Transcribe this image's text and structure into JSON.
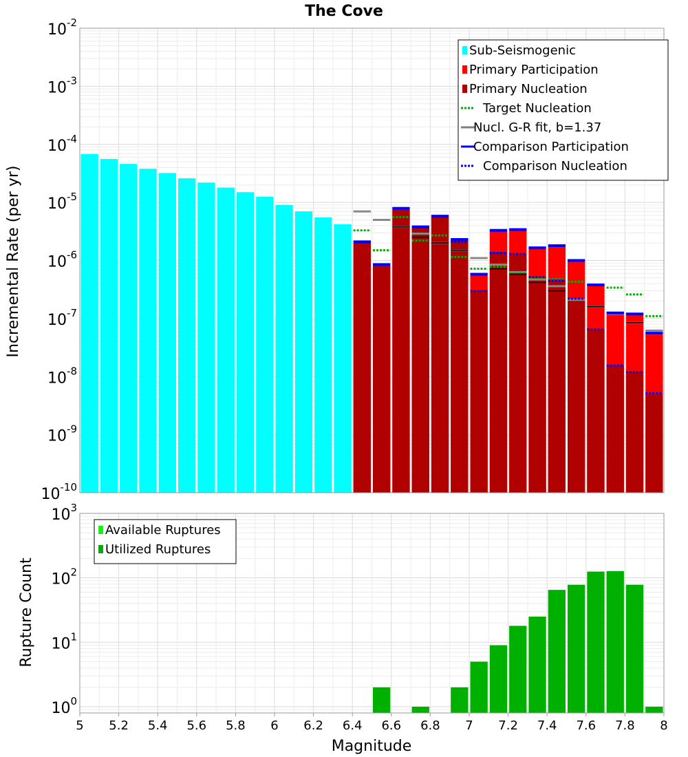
{
  "chart_data": [
    {
      "type": "bar",
      "title": "The Cove",
      "xlabel": "",
      "ylabel": "Incremental Rate (per yr)",
      "yscale": "log",
      "ylim": [
        1e-10,
        0.01
      ],
      "xlim": [
        5,
        8
      ],
      "yticks": [
        {
          "base": "10",
          "exp": "-2"
        },
        {
          "base": "10",
          "exp": "-3"
        },
        {
          "base": "10",
          "exp": "-4"
        },
        {
          "base": "10",
          "exp": "-5"
        },
        {
          "base": "10",
          "exp": "-6"
        },
        {
          "base": "10",
          "exp": "-7"
        },
        {
          "base": "10",
          "exp": "-8"
        },
        {
          "base": "10",
          "exp": "-9"
        },
        {
          "base": "10",
          "exp": "-10"
        }
      ],
      "legend_position": "top-right",
      "legend": [
        {
          "label": "Sub-Seismogenic",
          "color": "#00ffff",
          "style": "bar"
        },
        {
          "label": "Primary Participation",
          "color": "#ff0000",
          "style": "bar"
        },
        {
          "label": "Primary Nucleation",
          "color": "#b00000",
          "style": "bar"
        },
        {
          "label": "Target Nucleation",
          "color": "#00b000",
          "style": "dotted"
        },
        {
          "label": "Nucl. G-R fit, b=1.37",
          "color": "#808080",
          "style": "solid"
        },
        {
          "label": "Comparison Participation",
          "color": "#0000ff",
          "style": "solid"
        },
        {
          "label": "Comparison Nucleation",
          "color": "#0000ff",
          "style": "dotted"
        }
      ],
      "series": [
        {
          "name": "Sub-Seismogenic",
          "x": [
            5.05,
            5.15,
            5.25,
            5.35,
            5.45,
            5.55,
            5.65,
            5.75,
            5.85,
            5.95,
            6.05,
            6.15,
            6.25,
            6.35,
            6.55
          ],
          "values": [
            6.8e-05,
            5.6e-05,
            4.6e-05,
            3.8e-05,
            3.2e-05,
            2.6e-05,
            2.2e-05,
            1.8e-05,
            1.5e-05,
            1.25e-05,
            9e-06,
            7e-06,
            5.5e-06,
            4.2e-06,
            9e-07
          ]
        },
        {
          "name": "Primary Participation",
          "x": [
            6.45,
            6.55,
            6.65,
            6.75,
            6.85,
            6.95,
            7.05,
            7.15,
            7.25,
            7.35,
            7.45,
            7.55,
            7.65,
            7.75,
            7.85,
            7.95
          ],
          "values": [
            2e-06,
            8e-07,
            7.5e-06,
            3.7e-06,
            5.6e-06,
            2.2e-06,
            5.5e-07,
            3.2e-06,
            3.3e-06,
            1.6e-06,
            1.7e-06,
            9.5e-07,
            3.6e-07,
            1.2e-07,
            1.15e-07,
            5.3e-08
          ]
        },
        {
          "name": "Primary Nucleation",
          "x": [
            6.45,
            6.55,
            6.65,
            6.75,
            6.85,
            6.95,
            7.05,
            7.15,
            7.25,
            7.35,
            7.45,
            7.55,
            7.65,
            7.75,
            7.85,
            7.95
          ],
          "values": [
            2e-06,
            8e-07,
            7.5e-06,
            3.7e-06,
            5.6e-06,
            2.2e-06,
            3e-07,
            1.4e-06,
            1.3e-06,
            5e-07,
            4.5e-07,
            2.2e-07,
            6.5e-08,
            1.55e-08,
            1.2e-08,
            5e-09
          ]
        },
        {
          "name": "Target Nucleation",
          "x": [
            6.45,
            6.55,
            6.65,
            6.75,
            6.85,
            6.95,
            7.05,
            7.15,
            7.25,
            7.35,
            7.45,
            7.55,
            7.65,
            7.75,
            7.85,
            7.95
          ],
          "values": [
            3.3e-06,
            1.5e-06,
            5.6e-06,
            2.2e-06,
            2.7e-06,
            1.15e-06,
            7.2e-07,
            7.8e-07,
            6e-07,
            5e-07,
            4.8e-07,
            4.3e-07,
            3.8e-07,
            3.4e-07,
            2.6e-07,
            1.1e-07
          ]
        },
        {
          "name": "Nucl. G-R fit, b=1.37",
          "x": [
            6.45,
            6.55,
            6.65,
            6.75,
            6.85,
            6.95,
            7.05,
            7.15,
            7.25,
            7.35,
            7.45,
            7.55,
            7.65,
            7.75,
            7.85,
            7.95
          ],
          "values": [
            7e-06,
            5e-06,
            3.8e-06,
            2.9e-06,
            2e-06,
            1.5e-06,
            1.1e-06,
            8.5e-07,
            6.3e-07,
            4.7e-07,
            3.6e-07,
            2.1e-07,
            1.6e-07,
            1.2e-07,
            8.5e-08,
            6.2e-08
          ]
        },
        {
          "name": "Primary Nucleation marker",
          "x": [
            6.65,
            6.75,
            6.85,
            6.95,
            7.15,
            7.25,
            7.35,
            7.45,
            7.65,
            7.85
          ],
          "values": [
            3.8e-06,
            2.5e-06,
            2e-06,
            1.5e-06,
            7.2e-07,
            5.8e-07,
            4.2e-07,
            3e-07,
            1.6e-07,
            8.5e-08
          ]
        },
        {
          "name": "Comparison Participation",
          "x": [
            6.45,
            6.55,
            6.65,
            6.75,
            6.85,
            6.95,
            7.05,
            7.15,
            7.25,
            7.35,
            7.45,
            7.55,
            7.65,
            7.75,
            7.85,
            7.95
          ],
          "values": [
            2.1e-06,
            8.5e-07,
            7.9e-06,
            3.8e-06,
            5.8e-06,
            2.3e-06,
            5.8e-07,
            3.3e-06,
            3.4e-06,
            1.65e-06,
            1.8e-06,
            1e-06,
            3.8e-07,
            1.25e-07,
            1.2e-07,
            5.6e-08
          ]
        },
        {
          "name": "Comparison Nucleation",
          "x": [
            6.95,
            7.05,
            7.15,
            7.25,
            7.35,
            7.45,
            7.55,
            7.65,
            7.75,
            7.85,
            7.95
          ],
          "values": [
            2.1e-06,
            3e-07,
            1.35e-06,
            1.3e-06,
            5.2e-07,
            4.5e-07,
            2.2e-07,
            6.5e-08,
            1.55e-08,
            1.2e-08,
            5.2e-09
          ]
        }
      ]
    },
    {
      "type": "bar",
      "title": "",
      "xlabel": "Magnitude",
      "ylabel": "Rupture Count",
      "yscale": "log",
      "ylim": [
        0.8,
        1000
      ],
      "xlim": [
        5,
        8
      ],
      "xticks": [
        "5",
        "5.2",
        "5.4",
        "5.6",
        "5.8",
        "6",
        "6.2",
        "6.4",
        "6.6",
        "6.8",
        "7",
        "7.2",
        "7.4",
        "7.6",
        "7.8",
        "8"
      ],
      "yticks": [
        {
          "base": "10",
          "exp": "3"
        },
        {
          "base": "10",
          "exp": "2"
        },
        {
          "base": "10",
          "exp": "1"
        },
        {
          "base": "10",
          "exp": "0"
        }
      ],
      "legend_position": "top-left",
      "legend": [
        {
          "label": "Available Ruptures",
          "color": "#00ff00",
          "style": "bar"
        },
        {
          "label": "Utilized Ruptures",
          "color": "#00b000",
          "style": "bar"
        }
      ],
      "series": [
        {
          "name": "Utilized Ruptures",
          "x": [
            6.55,
            6.75,
            6.95,
            7.05,
            7.15,
            7.25,
            7.35,
            7.45,
            7.55,
            7.65,
            7.75,
            7.85,
            7.95
          ],
          "values": [
            2,
            1,
            2,
            5,
            9,
            18,
            25,
            65,
            78,
            125,
            127,
            78,
            1
          ]
        }
      ]
    }
  ]
}
